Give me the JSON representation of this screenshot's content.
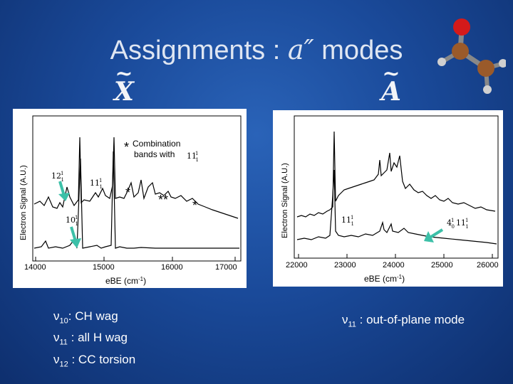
{
  "slide": {
    "title_prefix": "Assignments : ",
    "title_symbol": "a″",
    "title_suffix": " modes",
    "state_left": "X",
    "state_right": "A",
    "tilde": "~"
  },
  "left_plot": {
    "ylabel": "Electron Signal (A.U.)",
    "xlabel": "eBE (cm",
    "xlabel_sup": "-1",
    "xlabel_end": ")",
    "xticks": [
      "14000",
      "15000",
      "16000",
      "17000"
    ],
    "note_star": "*",
    "note_line1": "Combination",
    "note_line2": "bands with",
    "note_term": "11",
    "label_12": "12",
    "label_11": "11",
    "label_10": "10",
    "stars_1": "*",
    "stars_2": "**",
    "stars_3": "*",
    "superscript": "1",
    "subscript": "1"
  },
  "right_plot": {
    "ylabel": "Electron Signal (A.U.)",
    "xlabel": "eBE (cm",
    "xlabel_sup": "-1",
    "xlabel_end": ")",
    "xticks": [
      "22000",
      "23000",
      "24000",
      "25000",
      "26000"
    ],
    "label_11": "11",
    "label_4": "4",
    "label_4_11": "11",
    "sup_0": "0",
    "superscript": "1",
    "subscript": "1"
  },
  "modes_left": [
    {
      "v": "ν",
      "sub": "10",
      "text": ":  CH wag"
    },
    {
      "v": "ν",
      "sub": "11",
      "text": " : all H wag"
    },
    {
      "v": "ν",
      "sub": "12",
      "text": " : CC torsion"
    }
  ],
  "modes_right": [
    {
      "v": "ν",
      "sub": "11",
      "text": " : out-of-plane mode"
    }
  ],
  "colors": {
    "arrow": "#3cc0a8",
    "trace": "#000000",
    "molecule_carbon": "#9a5a2a",
    "molecule_oxygen": "#d41a1a",
    "molecule_hydrogen": "#d0d0d0"
  }
}
